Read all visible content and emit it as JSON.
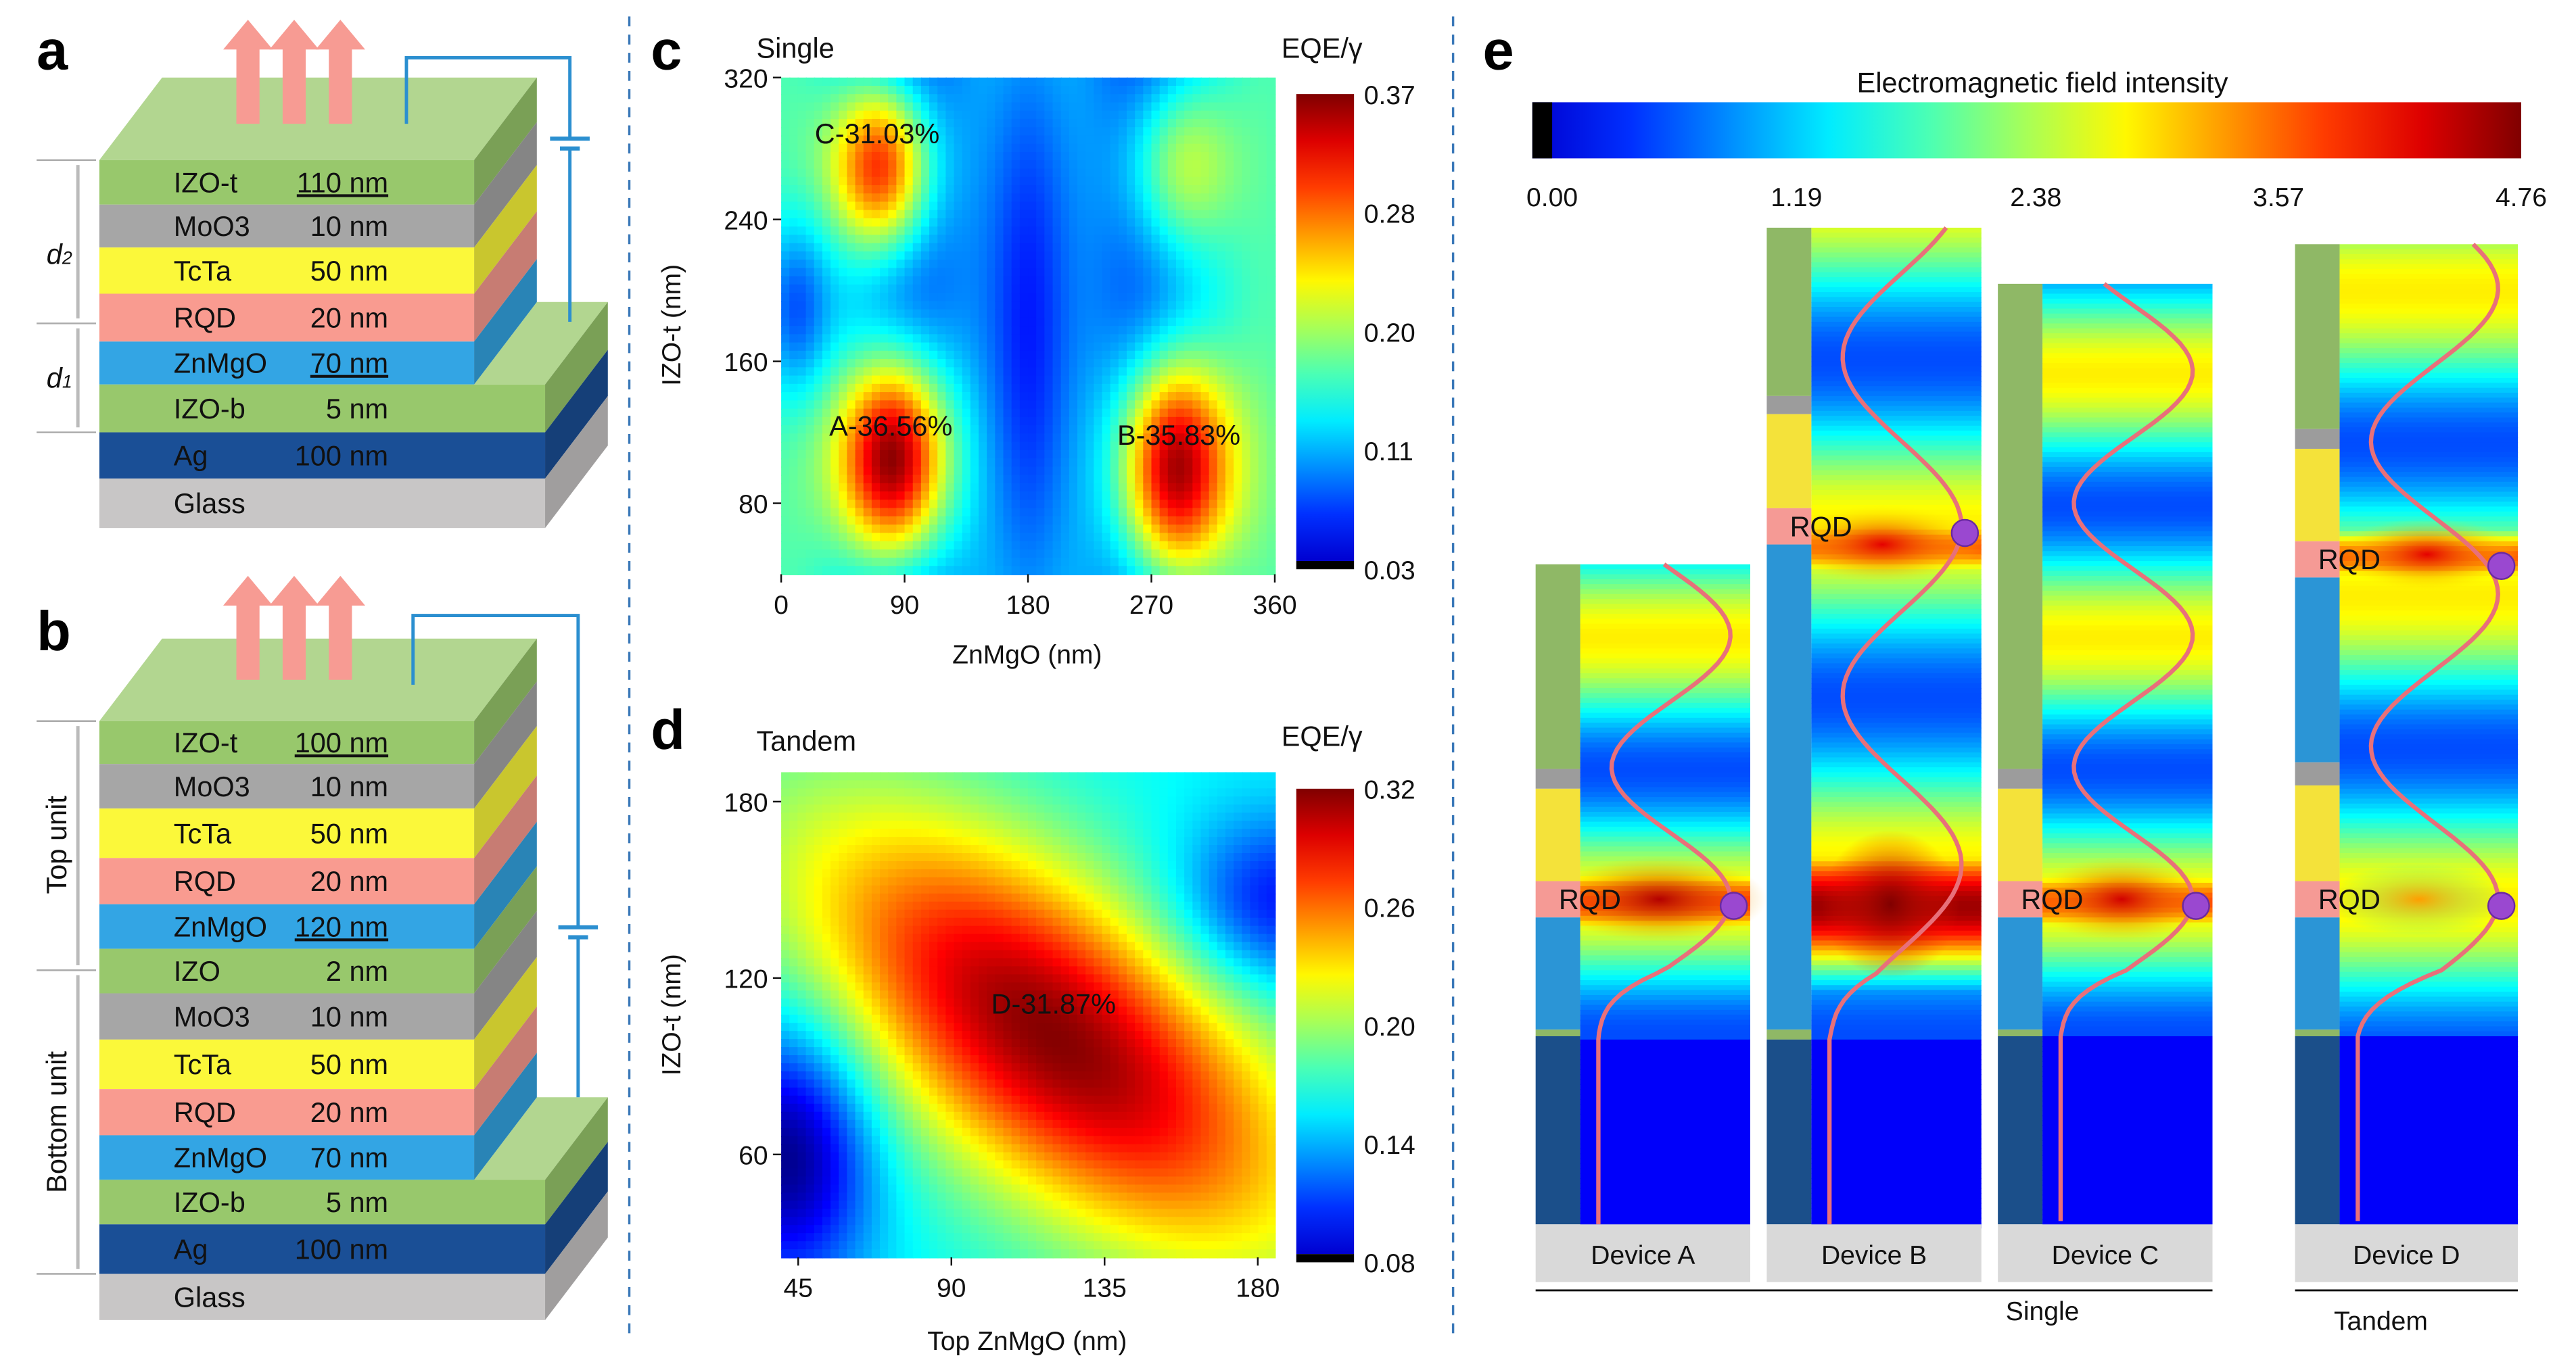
{
  "panels": {
    "a": {
      "label": "a",
      "layers": [
        {
          "name": "IZO-t",
          "thickness": "110 nm",
          "highlight": true,
          "color": "#98c86c"
        },
        {
          "name": "MoO3",
          "thickness": "10 nm",
          "highlight": false,
          "color": "#a6a6a6"
        },
        {
          "name": "TcTa",
          "thickness": "50 nm",
          "highlight": false,
          "color": "#fbf83a"
        },
        {
          "name": "RQD",
          "thickness": "20 nm",
          "highlight": false,
          "color": "#f99b90"
        },
        {
          "name": "ZnMgO",
          "thickness": "70 nm",
          "highlight": true,
          "color": "#33a5e4"
        },
        {
          "name": "IZO-b",
          "thickness": "5 nm",
          "highlight": false,
          "color": "#98c86c"
        },
        {
          "name": "Ag",
          "thickness": "100 nm",
          "highlight": false,
          "color": "#1a4f96"
        },
        {
          "name": "Glass",
          "thickness": "",
          "highlight": false,
          "color": "#c8c6c6"
        }
      ],
      "dimension_labels": [
        "d2",
        "d1"
      ]
    },
    "b": {
      "label": "b",
      "layers": [
        {
          "name": "IZO-t",
          "thickness": "100 nm",
          "highlight": true,
          "color": "#98c86c"
        },
        {
          "name": "MoO3",
          "thickness": "10 nm",
          "highlight": false,
          "color": "#a6a6a6"
        },
        {
          "name": "TcTa",
          "thickness": "50 nm",
          "highlight": false,
          "color": "#fbf83a"
        },
        {
          "name": "RQD",
          "thickness": "20 nm",
          "highlight": false,
          "color": "#f99b90"
        },
        {
          "name": "ZnMgO",
          "thickness": "120 nm",
          "highlight": true,
          "color": "#33a5e4"
        },
        {
          "name": "IZO",
          "thickness": "2 nm",
          "highlight": false,
          "color": "#98c86c"
        },
        {
          "name": "MoO3",
          "thickness": "10 nm",
          "highlight": false,
          "color": "#a6a6a6"
        },
        {
          "name": "TcTa",
          "thickness": "50 nm",
          "highlight": false,
          "color": "#fbf83a"
        },
        {
          "name": "RQD",
          "thickness": "20 nm",
          "highlight": false,
          "color": "#f99b90"
        },
        {
          "name": "ZnMgO",
          "thickness": "70 nm",
          "highlight": false,
          "color": "#33a5e4"
        },
        {
          "name": "IZO-b",
          "thickness": "5 nm",
          "highlight": false,
          "color": "#98c86c"
        },
        {
          "name": "Ag",
          "thickness": "100 nm",
          "highlight": false,
          "color": "#1a4f96"
        },
        {
          "name": "Glass",
          "thickness": "",
          "highlight": false,
          "color": "#c8c6c6"
        }
      ],
      "unit_labels": [
        "Top unit",
        "Bottom unit"
      ]
    },
    "e": {
      "label": "e",
      "colorbar_title": "Electromagnetic field intensity",
      "colorbar_ticks": [
        "0.00",
        "1.19",
        "2.38",
        "3.57",
        "4.76"
      ],
      "colorbar_range": [
        0,
        4.76
      ],
      "layer_label": "RQD",
      "devices": [
        "Device A",
        "Device B",
        "Device C",
        "Device D"
      ],
      "groups": [
        "Single",
        "Tandem"
      ]
    }
  },
  "chart_data": [
    {
      "type": "heatmap",
      "panel": "c",
      "title": "Single",
      "xlabel": "ZnMgO (nm)",
      "ylabel": "IZO-t (nm)",
      "xlim": [
        0,
        360
      ],
      "ylim": [
        40,
        320
      ],
      "xticks": [
        "0",
        "90",
        "180",
        "270",
        "360"
      ],
      "yticks": [
        "80",
        "160",
        "240",
        "320"
      ],
      "colorbar_label": "EQE/γ",
      "colorbar_ticks": [
        "0.37",
        "0.28",
        "0.20",
        "0.11",
        "0.03"
      ],
      "colorbar_range": [
        0.03,
        0.37
      ],
      "annotations": [
        {
          "label": "A-36.56%",
          "x": 80,
          "y": 105,
          "value": 0.3656
        },
        {
          "label": "B-35.83%",
          "x": 290,
          "y": 100,
          "value": 0.3583
        },
        {
          "label": "C-31.03%",
          "x": 70,
          "y": 270,
          "value": 0.3103
        }
      ]
    },
    {
      "type": "heatmap",
      "panel": "d",
      "title": "Tandem",
      "xlabel": "Top ZnMgO (nm)",
      "ylabel": "IZO-t (nm)",
      "xlim": [
        40,
        185
      ],
      "ylim": [
        25,
        190
      ],
      "xticks": [
        "45",
        "90",
        "135",
        "180"
      ],
      "yticks": [
        "60",
        "120",
        "180"
      ],
      "colorbar_label": "EQE/γ",
      "colorbar_ticks": [
        "0.32",
        "0.26",
        "0.20",
        "0.14",
        "0.08"
      ],
      "colorbar_range": [
        0.08,
        0.32
      ],
      "annotations": [
        {
          "label": "D-31.87%",
          "x": 120,
          "y": 100,
          "value": 0.3187
        }
      ]
    }
  ]
}
